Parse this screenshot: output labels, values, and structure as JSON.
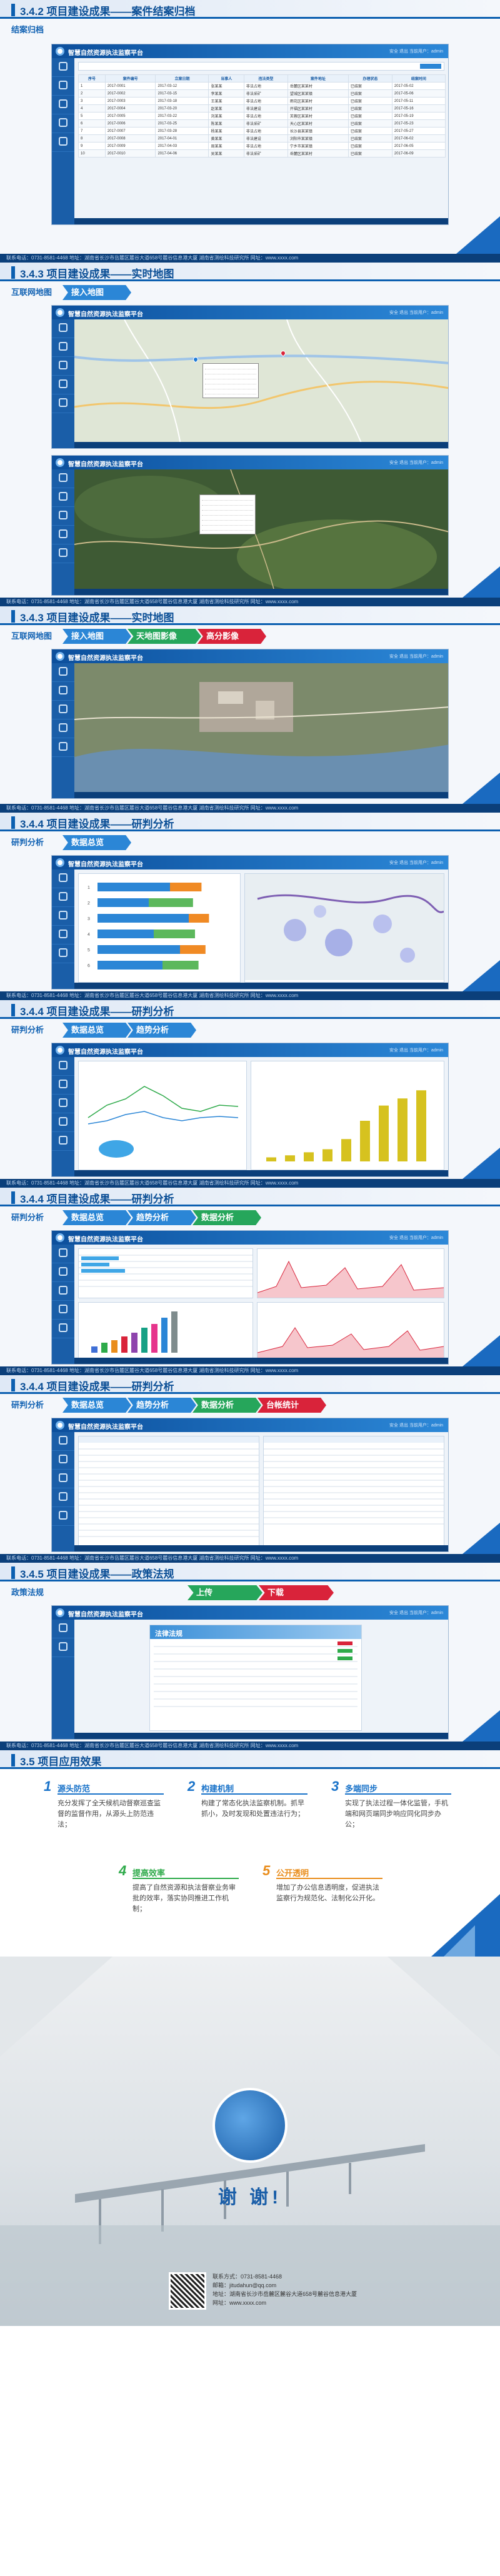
{
  "app": {
    "name": "智慧自然资源执法监察平台",
    "info": "安全 退出 当前用户：admin"
  },
  "footer": "联系电话：0731-8581-4468    地址：湖南省长沙市岳麓区麓谷大道658号麓谷信息港大厦  湖南省测绘科技研究所    网址：www.xxxx.com",
  "slides": [
    {
      "title": "3.4.2 项目建设成果——案件结案归档",
      "tabs": [
        {
          "label": "结案归档",
          "style": "label"
        }
      ],
      "table_header": [
        "序号",
        "案件编号",
        "立案日期",
        "当事人",
        "违法类型",
        "案件地址",
        "办理状态",
        "结案时间"
      ],
      "table_rows": [
        [
          "1",
          "2017-0001",
          "2017-03-12",
          "张某某",
          "非法占地",
          "岳麓区某某村",
          "已结案",
          "2017-05-02"
        ],
        [
          "2",
          "2017-0002",
          "2017-03-15",
          "李某某",
          "非法采矿",
          "望城区某某镇",
          "已结案",
          "2017-05-06"
        ],
        [
          "3",
          "2017-0003",
          "2017-03-18",
          "王某某",
          "非法占地",
          "雨花区某某村",
          "已结案",
          "2017-05-11"
        ],
        [
          "4",
          "2017-0004",
          "2017-03-20",
          "赵某某",
          "非法建设",
          "开福区某某村",
          "已结案",
          "2017-05-16"
        ],
        [
          "5",
          "2017-0005",
          "2017-03-22",
          "刘某某",
          "非法占地",
          "芙蓉区某某村",
          "已结案",
          "2017-05-19"
        ],
        [
          "6",
          "2017-0006",
          "2017-03-25",
          "陈某某",
          "非法采矿",
          "天心区某某村",
          "已结案",
          "2017-05-23"
        ],
        [
          "7",
          "2017-0007",
          "2017-03-28",
          "杨某某",
          "非法占地",
          "长沙县某某镇",
          "已结案",
          "2017-05-27"
        ],
        [
          "8",
          "2017-0008",
          "2017-04-01",
          "黄某某",
          "非法建设",
          "浏阳市某某镇",
          "已结案",
          "2017-06-02"
        ],
        [
          "9",
          "2017-0009",
          "2017-04-03",
          "周某某",
          "非法占地",
          "宁乡市某某镇",
          "已结案",
          "2017-06-05"
        ],
        [
          "10",
          "2017-0010",
          "2017-04-06",
          "吴某某",
          "非法采矿",
          "岳麓区某某村",
          "已结案",
          "2017-06-09"
        ]
      ]
    },
    {
      "title": "3.4.3 项目建设成果——实时地图",
      "tabs": [
        {
          "label": "互联网地图",
          "style": "label"
        },
        {
          "label": "接入地图",
          "style": "blue"
        }
      ]
    },
    {
      "title": "3.4.3 项目建设成果——实时地图",
      "tabs": [
        {
          "label": "互联网地图",
          "style": "label"
        },
        {
          "label": "接入地图",
          "style": "blue"
        },
        {
          "label": "天地图影像",
          "style": "green"
        },
        {
          "label": "高分影像",
          "style": "red"
        }
      ]
    },
    {
      "title": "3.4.4 项目建设成果——研判分析",
      "tabs": [
        {
          "label": "研判分析",
          "style": "label"
        },
        {
          "label": "数据总览",
          "style": "blue"
        }
      ]
    },
    {
      "title": "3.4.4 项目建设成果——研判分析",
      "tabs": [
        {
          "label": "研判分析",
          "style": "label"
        },
        {
          "label": "数据总览",
          "style": "blue"
        },
        {
          "label": "趋势分析",
          "style": "blue"
        }
      ]
    },
    {
      "title": "3.4.4 项目建设成果——研判分析",
      "tabs": [
        {
          "label": "研判分析",
          "style": "label"
        },
        {
          "label": "数据总览",
          "style": "blue"
        },
        {
          "label": "趋势分析",
          "style": "blue"
        },
        {
          "label": "数据分析",
          "style": "green"
        }
      ]
    },
    {
      "title": "3.4.4 项目建设成果——研判分析",
      "tabs": [
        {
          "label": "研判分析",
          "style": "label"
        },
        {
          "label": "数据总览",
          "style": "blue"
        },
        {
          "label": "趋势分析",
          "style": "blue"
        },
        {
          "label": "数据分析",
          "style": "green"
        },
        {
          "label": "台帐统计",
          "style": "red"
        }
      ]
    },
    {
      "title": "3.4.5 项目建设成果——政策法规",
      "tabs": [
        {
          "label": "政策法规",
          "style": "label"
        },
        {
          "label": "上传",
          "style": "green"
        },
        {
          "label": "下载",
          "style": "red"
        }
      ],
      "doc_title": "法律法规"
    },
    {
      "title": "3.5 项目应用效果",
      "results": [
        {
          "num": "1",
          "head": "源头防范",
          "body": "充分发挥了全天候机动督察巡查监督的监督作用，从源头上防范违法；",
          "style": "b"
        },
        {
          "num": "2",
          "head": "构建机制",
          "body": "构建了常态化执法监察机制。抓早抓小，及时发现和处置违法行为；",
          "style": "b"
        },
        {
          "num": "3",
          "head": "多端同步",
          "body": "实现了执法过程一体化监管，手机端和网页端同步响应同化同步办公；",
          "style": "b"
        },
        {
          "num": "4",
          "head": "提高效率",
          "body": "提高了自然资源和执法督察业务审批的效率，落实协同推进工作机制；",
          "style": "g"
        },
        {
          "num": "5",
          "head": "公开透明",
          "body": "增加了办公信息透明度，促进执法监察行为规范化、法制化公开化。",
          "style": "o"
        }
      ]
    }
  ],
  "thanks": {
    "text": "谢 谢!",
    "contact": [
      "联系方式：0731-8581-4468",
      "邮箱：jitudahun@qq.com",
      "地址：湖南省长沙市岳麓区麓谷大道658号麓谷信息港大厦",
      "网址：www.xxxx.com"
    ]
  },
  "charts": {
    "bars_categories": [
      "1",
      "2",
      "3",
      "4",
      "5",
      "6"
    ],
    "bars_values": [
      58,
      41,
      73,
      45,
      66,
      52
    ],
    "column_values": [
      4,
      6,
      9,
      12,
      22,
      40,
      55,
      62,
      70
    ],
    "colors": {
      "blue": "#2b86d6",
      "orange": "#f08a24",
      "green": "#5cb85c",
      "yellow": "#d6c21f",
      "pink": "#e06aa0"
    }
  }
}
